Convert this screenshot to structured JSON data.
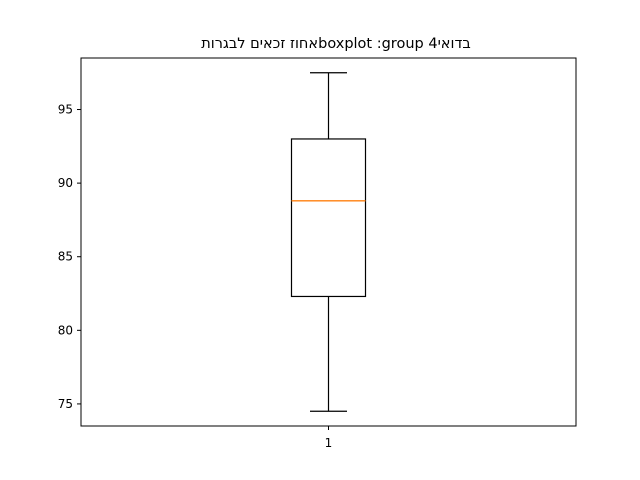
{
  "chart_data": {
    "type": "boxplot",
    "title": "בדואי4 boxplot :group‏אחוז זכאים לבגרות",
    "xlabel": "",
    "ylabel": "",
    "categories": [
      "1"
    ],
    "boxes": [
      {
        "label": "1",
        "whisker_low": 74.5,
        "q1": 82.3,
        "median": 88.8,
        "q3": 93.0,
        "whisker_high": 97.5
      }
    ],
    "ylim": [
      73.5,
      98.5
    ],
    "yticks": [
      75,
      80,
      85,
      90,
      95
    ],
    "xlim": [
      0.5,
      1.5
    ],
    "grid": false,
    "colors": {
      "box": "#000000",
      "median": "#ff7f0e",
      "whisker": "#000000"
    }
  }
}
